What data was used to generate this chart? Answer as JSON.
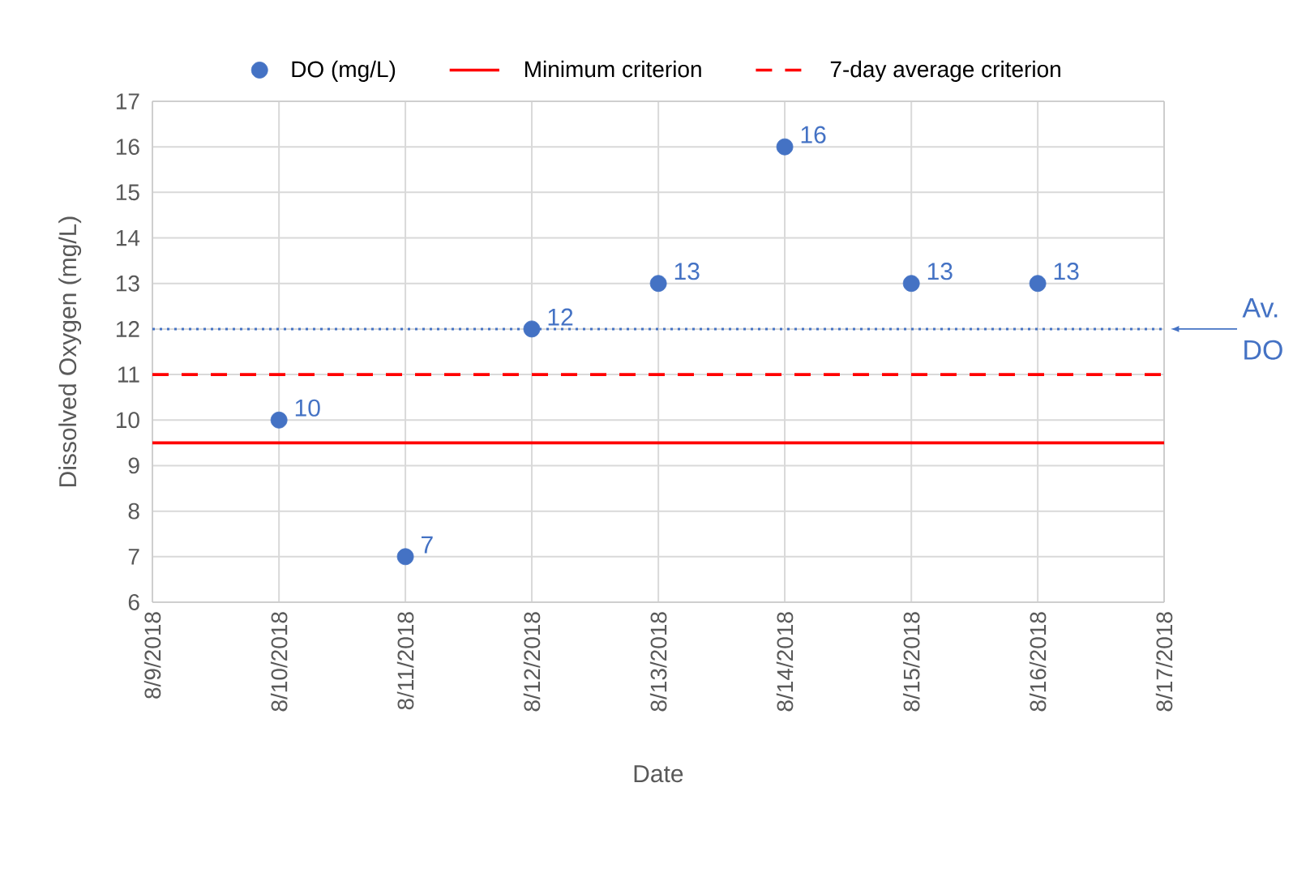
{
  "chart_data": {
    "type": "scatter",
    "xlabel": "Date",
    "ylabel": "Dissolved Oxygen (mg/L)",
    "x": [
      "2018-08-10",
      "2018-08-11",
      "2018-08-12",
      "2018-08-13",
      "2018-08-14",
      "2018-08-15",
      "2018-08-16"
    ],
    "series": [
      {
        "name": "DO (mg/L)",
        "color": "#4472c4",
        "data_labels": true,
        "values": [
          10,
          7,
          12,
          13,
          16,
          13,
          13
        ]
      },
      {
        "name": "Minimum criterion",
        "type": "line",
        "color": "#ff0000",
        "line_style": "solid",
        "marker": "none",
        "x": [
          "2018-08-09",
          "2018-08-17"
        ],
        "values": [
          9.5,
          9.5
        ]
      },
      {
        "name": "7-day average criterion",
        "type": "line",
        "color": "#ff0000",
        "line_style": "dashed",
        "marker": "none",
        "x": [
          "2018-08-09",
          "2018-08-17"
        ],
        "values": [
          11,
          11
        ]
      }
    ],
    "ref_lines": [
      {
        "axis": "y",
        "value": 12,
        "label": "Av. DO",
        "color": "#4472c4",
        "line_style": "dotted"
      }
    ],
    "xlim": [
      "2018-08-09",
      "2018-08-17"
    ],
    "xticks": [
      {
        "value": "2018-08-09",
        "label": "8/9/2018"
      },
      {
        "value": "2018-08-10",
        "label": "8/10/2018"
      },
      {
        "value": "2018-08-11",
        "label": "8/11/2018"
      },
      {
        "value": "2018-08-12",
        "label": "8/12/2018"
      },
      {
        "value": "2018-08-13",
        "label": "8/13/2018"
      },
      {
        "value": "2018-08-14",
        "label": "8/14/2018"
      },
      {
        "value": "2018-08-15",
        "label": "8/15/2018"
      },
      {
        "value": "2018-08-16",
        "label": "8/16/2018"
      },
      {
        "value": "2018-08-17",
        "label": "8/17/2018"
      }
    ],
    "ylim": [
      6,
      17
    ],
    "yticks": [
      6,
      7,
      8,
      9,
      10,
      11,
      12,
      13,
      14,
      15,
      16,
      17
    ],
    "grid": true,
    "legend": "top",
    "marker": "circle"
  }
}
